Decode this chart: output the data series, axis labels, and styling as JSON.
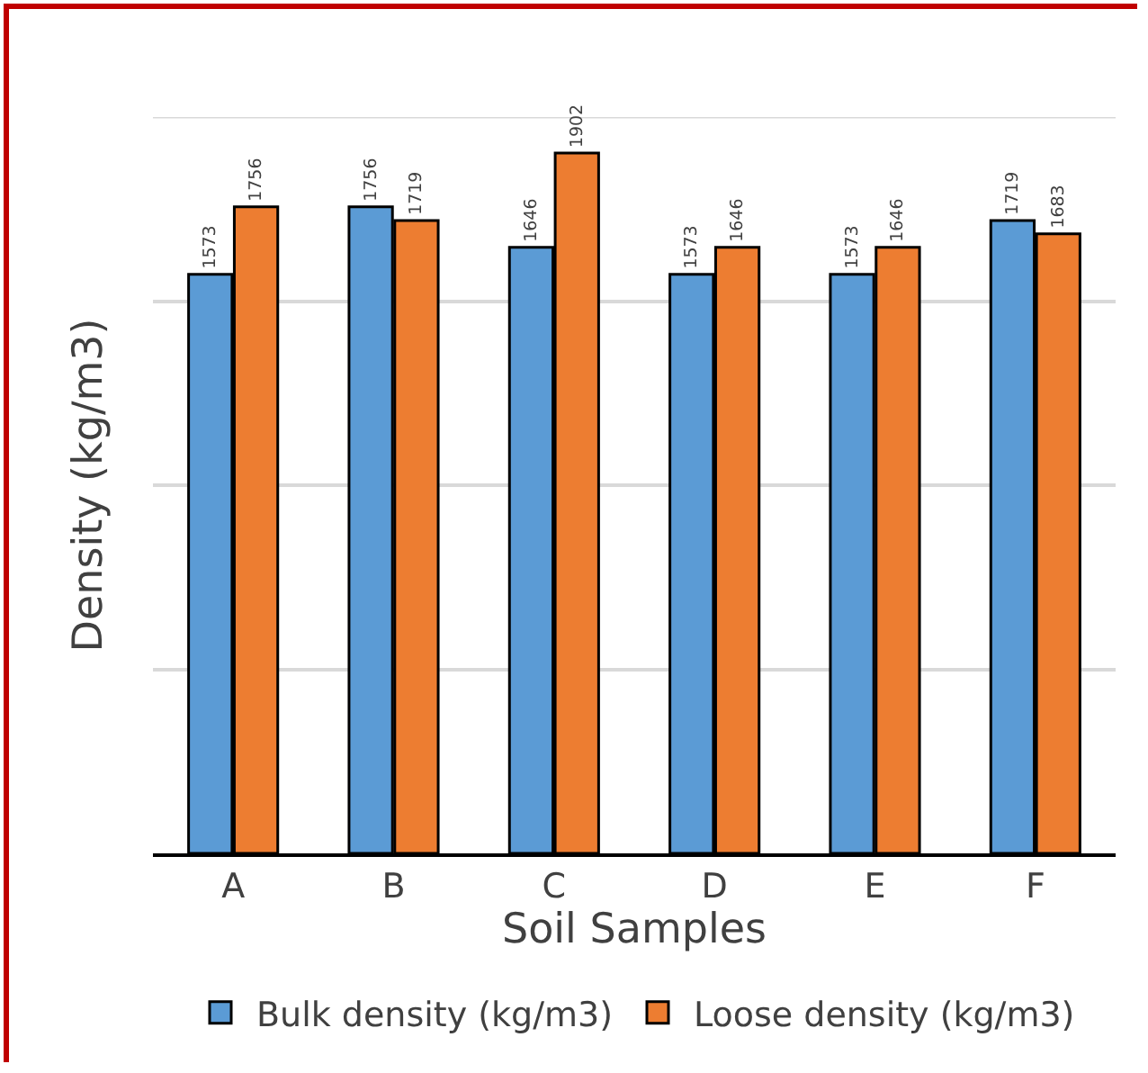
{
  "chart_data": {
    "type": "bar",
    "xlabel": "Soil Samples",
    "ylabel": "Density (kg/m3)",
    "categories": [
      "A",
      "B",
      "C",
      "D",
      "E",
      "F"
    ],
    "series": [
      {
        "name": "Bulk density (kg/m3)",
        "color": "#5b9bd5",
        "values": [
          1573,
          1756,
          1646,
          1573,
          1573,
          1719
        ]
      },
      {
        "name": "Loose density (kg/m3)",
        "color": "#ed7d31",
        "values": [
          1756,
          1719,
          1902,
          1646,
          1646,
          1683
        ]
      }
    ],
    "ylim": [
      0,
      2000
    ],
    "yticks": [
      {
        "value": 0,
        "label": null
      },
      {
        "value": 500,
        "label": null
      },
      {
        "value": 1000,
        "label": null
      },
      {
        "value": 1500,
        "label": null
      },
      {
        "value": 2000,
        "label": null
      }
    ],
    "grid": "y",
    "legend": "bottom",
    "data_labels": true,
    "tick_labels": "x"
  }
}
